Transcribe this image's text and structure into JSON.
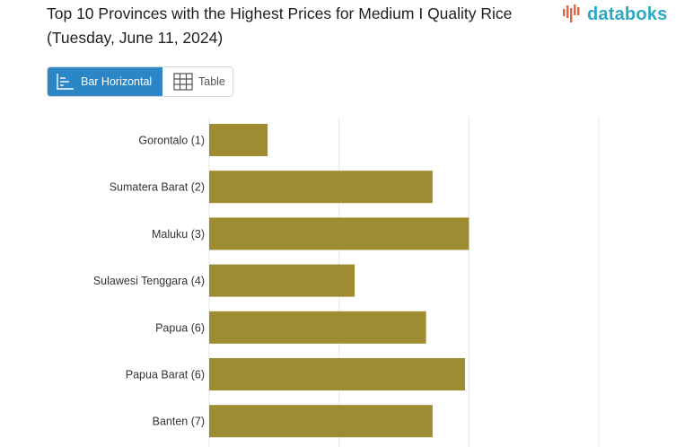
{
  "header": {
    "title": "Top 10 Provinces with the Highest Prices for Medium I Quality Rice (Tuesday, June 11, 2024)",
    "logo_text": "databoks"
  },
  "view_toggle": {
    "bar_label": "Bar Horizontal",
    "table_label": "Table",
    "active": "bar"
  },
  "colors": {
    "bar": "#9e8c33",
    "grid": "#e6e6e6",
    "toggle_active": "#2b86c5",
    "logo": "#2aa9c4"
  },
  "chart_data": {
    "type": "bar",
    "orientation": "horizontal",
    "categories": [
      "Gorontalo (1)",
      "Sumatera Barat (2)",
      "Maluku (3)",
      "Sulawesi Tenggara (4)",
      "Papua (6)",
      "Papua Barat (6)",
      "Banten (7)"
    ],
    "values": [
      0.45,
      1.72,
      2.0,
      1.12,
      1.67,
      1.97,
      1.72
    ],
    "xlim": [
      0,
      3
    ],
    "grid": true,
    "title": "Top 10 Provinces with the Highest Prices for Medium I Quality Rice (Tuesday, June 11, 2024)"
  }
}
